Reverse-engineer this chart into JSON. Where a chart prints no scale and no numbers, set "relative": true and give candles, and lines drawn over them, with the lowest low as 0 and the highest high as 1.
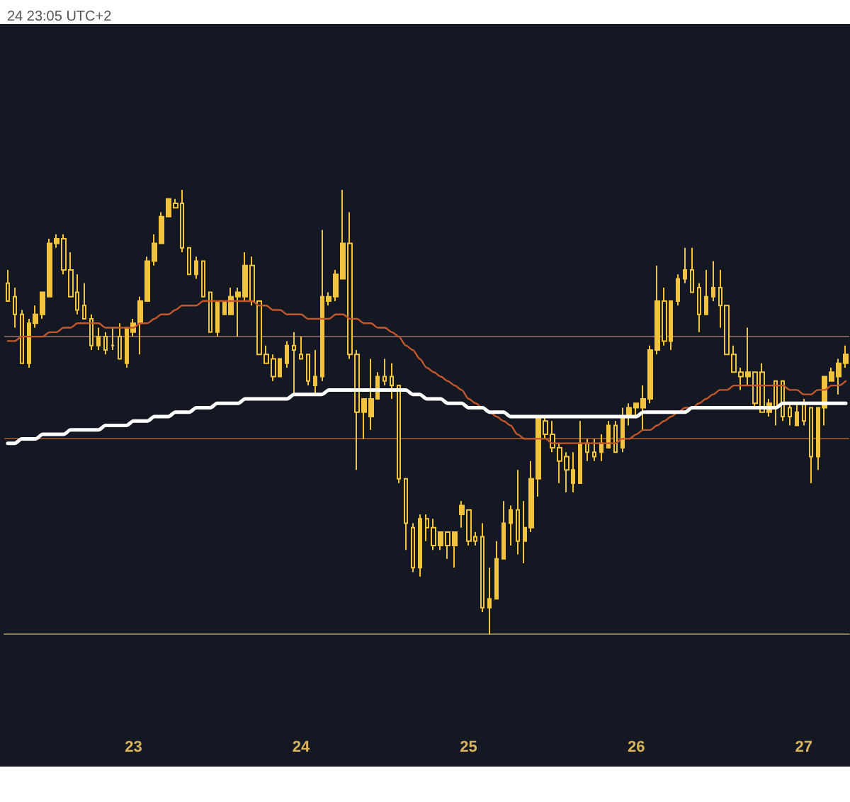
{
  "chart_data": {
    "type": "candlestick",
    "relative": true,
    "annotations": [
      "24 23:05 UTC+2"
    ],
    "color": "#f2c43d",
    "categories": [
      null,
      null,
      null,
      null,
      null,
      null,
      null,
      null,
      null,
      null,
      null,
      null,
      null,
      null,
      null,
      null,
      null,
      null,
      "23",
      null,
      null,
      null,
      null,
      null,
      null,
      null,
      null,
      null,
      null,
      null,
      null,
      null,
      null,
      null,
      null,
      null,
      null,
      null,
      null,
      null,
      null,
      null,
      "24",
      null,
      null,
      null,
      null,
      null,
      null,
      null,
      null,
      null,
      null,
      null,
      null,
      null,
      null,
      null,
      null,
      null,
      null,
      null,
      null,
      null,
      null,
      null,
      "25",
      null,
      null,
      null,
      null,
      null,
      null,
      null,
      null,
      null,
      null,
      null,
      null,
      null,
      null,
      null,
      null,
      null,
      null,
      null,
      null,
      null,
      null,
      null,
      "26",
      null,
      null,
      null,
      null,
      null,
      null,
      null,
      null,
      null,
      null,
      null,
      null,
      null,
      null,
      null,
      null,
      null,
      null,
      null,
      null,
      null,
      null,
      null,
      "27",
      null,
      null,
      null,
      null,
      null,
      null
    ],
    "ohlc": [
      [
        0.79,
        0.82,
        0.75,
        0.75
      ],
      [
        0.76,
        0.78,
        0.69,
        0.72
      ],
      [
        0.72,
        0.73,
        0.61,
        0.61
      ],
      [
        0.61,
        0.71,
        0.6,
        0.7
      ],
      [
        0.7,
        0.74,
        0.69,
        0.72
      ],
      [
        0.72,
        0.77,
        0.71,
        0.77
      ],
      [
        0.76,
        0.89,
        0.76,
        0.88
      ],
      [
        0.88,
        0.9,
        0.87,
        0.89
      ],
      [
        0.89,
        0.9,
        0.81,
        0.82
      ],
      [
        0.82,
        0.86,
        0.76,
        0.76
      ],
      [
        0.77,
        0.81,
        0.72,
        0.73
      ],
      [
        0.74,
        0.79,
        0.71,
        0.71
      ],
      [
        0.71,
        0.72,
        0.64,
        0.65
      ],
      [
        0.65,
        0.69,
        0.64,
        0.67
      ],
      [
        0.67,
        0.68,
        0.63,
        0.64
      ],
      [
        0.65,
        0.69,
        0.64,
        0.65
      ],
      [
        0.67,
        0.7,
        0.62,
        0.62
      ],
      [
        0.61,
        0.69,
        0.6,
        0.69
      ],
      [
        0.68,
        0.71,
        0.67,
        0.7
      ],
      [
        0.7,
        0.76,
        0.63,
        0.75
      ],
      [
        0.75,
        0.85,
        0.75,
        0.84
      ],
      [
        0.84,
        0.9,
        0.83,
        0.88
      ],
      [
        0.88,
        0.95,
        0.88,
        0.94
      ],
      [
        0.94,
        0.98,
        0.94,
        0.98
      ],
      [
        0.97,
        0.98,
        0.96,
        0.96
      ],
      [
        0.97,
        1.0,
        0.86,
        0.87
      ],
      [
        0.87,
        0.87,
        0.81,
        0.81
      ],
      [
        0.81,
        0.85,
        0.8,
        0.84
      ],
      [
        0.84,
        0.84,
        0.76,
        0.76
      ],
      [
        0.77,
        0.77,
        0.68,
        0.68
      ],
      [
        0.68,
        0.75,
        0.67,
        0.75
      ],
      [
        0.72,
        0.75,
        0.72,
        0.75
      ],
      [
        0.72,
        0.78,
        0.72,
        0.76
      ],
      [
        0.76,
        0.78,
        0.67,
        0.77
      ],
      [
        0.76,
        0.86,
        0.75,
        0.83
      ],
      [
        0.83,
        0.85,
        0.74,
        0.75
      ],
      [
        0.75,
        0.75,
        0.63,
        0.63
      ],
      [
        0.63,
        0.65,
        0.61,
        0.61
      ],
      [
        0.62,
        0.63,
        0.57,
        0.58
      ],
      [
        0.58,
        0.62,
        0.58,
        0.62
      ],
      [
        0.61,
        0.66,
        0.6,
        0.65
      ],
      [
        0.65,
        0.68,
        0.54,
        0.64
      ],
      [
        0.63,
        0.67,
        0.62,
        0.62
      ],
      [
        0.63,
        0.63,
        0.56,
        0.57
      ],
      [
        0.56,
        0.64,
        0.54,
        0.58
      ],
      [
        0.58,
        0.91,
        0.57,
        0.76
      ],
      [
        0.75,
        0.77,
        0.74,
        0.76
      ],
      [
        0.76,
        0.82,
        0.75,
        0.81
      ],
      [
        0.8,
        1.0,
        0.8,
        0.88
      ],
      [
        0.88,
        0.95,
        0.62,
        0.63
      ],
      [
        0.63,
        0.64,
        0.37,
        0.5
      ],
      [
        0.5,
        0.53,
        0.44,
        0.53
      ],
      [
        0.49,
        0.62,
        0.46,
        0.53
      ],
      [
        0.53,
        0.59,
        0.53,
        0.58
      ],
      [
        0.58,
        0.62,
        0.56,
        0.57
      ],
      [
        0.58,
        0.61,
        0.53,
        0.56
      ],
      [
        0.56,
        0.56,
        0.34,
        0.35
      ],
      [
        0.35,
        0.35,
        0.19,
        0.25
      ],
      [
        0.24,
        0.25,
        0.14,
        0.15
      ],
      [
        0.15,
        0.27,
        0.13,
        0.26
      ],
      [
        0.26,
        0.27,
        0.21,
        0.24
      ],
      [
        0.24,
        0.26,
        0.19,
        0.2
      ],
      [
        0.2,
        0.23,
        0.19,
        0.23
      ],
      [
        0.23,
        0.23,
        0.17,
        0.2
      ],
      [
        0.2,
        0.23,
        0.15,
        0.23
      ],
      [
        0.27,
        0.3,
        0.24,
        0.29
      ],
      [
        0.28,
        0.28,
        0.2,
        0.21
      ],
      [
        0.22,
        0.23,
        0.2,
        0.21
      ],
      [
        0.22,
        0.25,
        0.05,
        0.06
      ],
      [
        0.06,
        0.15,
        0.0,
        0.08
      ],
      [
        0.08,
        0.21,
        0.08,
        0.17
      ],
      [
        0.17,
        0.3,
        0.17,
        0.25
      ],
      [
        0.25,
        0.29,
        0.2,
        0.28
      ],
      [
        0.28,
        0.37,
        0.18,
        0.21
      ],
      [
        0.21,
        0.3,
        0.16,
        0.24
      ],
      [
        0.24,
        0.39,
        0.23,
        0.35
      ],
      [
        0.35,
        0.49,
        0.31,
        0.49
      ],
      [
        0.48,
        0.49,
        0.44,
        0.45
      ],
      [
        0.45,
        0.48,
        0.41,
        0.42
      ],
      [
        0.42,
        0.43,
        0.34,
        0.39
      ],
      [
        0.4,
        0.41,
        0.32,
        0.37
      ],
      [
        0.34,
        0.41,
        0.32,
        0.37
      ],
      [
        0.34,
        0.48,
        0.34,
        0.43
      ],
      [
        0.43,
        0.44,
        0.39,
        0.41
      ],
      [
        0.41,
        0.44,
        0.39,
        0.4
      ],
      [
        0.41,
        0.45,
        0.39,
        0.43
      ],
      [
        0.42,
        0.48,
        0.42,
        0.47
      ],
      [
        0.47,
        0.48,
        0.41,
        0.41
      ],
      [
        0.42,
        0.51,
        0.41,
        0.49
      ],
      [
        0.49,
        0.52,
        0.47,
        0.51
      ],
      [
        0.51,
        0.52,
        0.49,
        0.52
      ],
      [
        0.51,
        0.56,
        0.46,
        0.53
      ],
      [
        0.53,
        0.65,
        0.52,
        0.64
      ],
      [
        0.64,
        0.83,
        0.63,
        0.75
      ],
      [
        0.75,
        0.78,
        0.65,
        0.66
      ],
      [
        0.66,
        0.75,
        0.64,
        0.75
      ],
      [
        0.75,
        0.81,
        0.74,
        0.8
      ],
      [
        0.8,
        0.87,
        0.79,
        0.82
      ],
      [
        0.82,
        0.87,
        0.77,
        0.77
      ],
      [
        0.78,
        0.79,
        0.68,
        0.72
      ],
      [
        0.72,
        0.82,
        0.72,
        0.76
      ],
      [
        0.76,
        0.84,
        0.75,
        0.78
      ],
      [
        0.78,
        0.82,
        0.69,
        0.74
      ],
      [
        0.74,
        0.74,
        0.63,
        0.63
      ],
      [
        0.63,
        0.65,
        0.59,
        0.59
      ],
      [
        0.59,
        0.6,
        0.55,
        0.58
      ],
      [
        0.58,
        0.69,
        0.56,
        0.59
      ],
      [
        0.59,
        0.59,
        0.51,
        0.52
      ],
      [
        0.59,
        0.61,
        0.5,
        0.5
      ],
      [
        0.5,
        0.53,
        0.49,
        0.52
      ],
      [
        0.57,
        0.57,
        0.47,
        0.51
      ],
      [
        0.57,
        0.57,
        0.48,
        0.49
      ],
      [
        0.51,
        0.52,
        0.47,
        0.49
      ],
      [
        0.47,
        0.52,
        0.47,
        0.5
      ],
      [
        0.52,
        0.53,
        0.47,
        0.48
      ],
      [
        0.51,
        0.51,
        0.34,
        0.4
      ],
      [
        0.4,
        0.51,
        0.37,
        0.51
      ],
      [
        0.51,
        0.58,
        0.47,
        0.58
      ],
      [
        0.57,
        0.6,
        0.57,
        0.59
      ],
      [
        0.58,
        0.62,
        0.54,
        0.61
      ],
      [
        0.61,
        0.65,
        0.6,
        0.63
      ]
    ],
    "series": [
      {
        "type": "line",
        "color": "#c4572c",
        "values": [
          0.66,
          0.66,
          0.67,
          0.67,
          0.67,
          0.67,
          0.68,
          0.68,
          0.69,
          0.69,
          0.7,
          0.7,
          0.7,
          0.7,
          0.69,
          0.69,
          0.69,
          0.69,
          0.69,
          0.7,
          0.7,
          0.71,
          0.72,
          0.72,
          0.73,
          0.74,
          0.74,
          0.74,
          0.75,
          0.75,
          0.75,
          0.75,
          0.75,
          0.75,
          0.75,
          0.75,
          0.74,
          0.74,
          0.73,
          0.73,
          0.72,
          0.72,
          0.72,
          0.71,
          0.71,
          0.71,
          0.71,
          0.72,
          0.72,
          0.71,
          0.71,
          0.7,
          0.7,
          0.69,
          0.69,
          0.68,
          0.67,
          0.65,
          0.64,
          0.62,
          0.6,
          0.59,
          0.58,
          0.57,
          0.56,
          0.55,
          0.53,
          0.52,
          0.51,
          0.5,
          0.49,
          0.48,
          0.47,
          0.45,
          0.44,
          0.44,
          0.44,
          0.44,
          0.43,
          0.43,
          0.43,
          0.43,
          0.43,
          0.43,
          0.43,
          0.43,
          0.43,
          0.43,
          0.44,
          0.44,
          0.45,
          0.46,
          0.46,
          0.47,
          0.48,
          0.49,
          0.5,
          0.51,
          0.51,
          0.52,
          0.53,
          0.54,
          0.55,
          0.55,
          0.56,
          0.56,
          0.56,
          0.56,
          0.56,
          0.56,
          0.56,
          0.56,
          0.55,
          0.55,
          0.54,
          0.54,
          0.55,
          0.55,
          0.56,
          0.56,
          0.57
        ]
      },
      {
        "type": "line",
        "color": "#ffffff",
        "values": [
          0.43,
          0.43,
          0.44,
          0.44,
          0.44,
          0.45,
          0.45,
          0.45,
          0.45,
          0.46,
          0.46,
          0.46,
          0.46,
          0.46,
          0.47,
          0.47,
          0.47,
          0.47,
          0.48,
          0.48,
          0.48,
          0.49,
          0.49,
          0.49,
          0.5,
          0.5,
          0.5,
          0.51,
          0.51,
          0.51,
          0.52,
          0.52,
          0.52,
          0.52,
          0.53,
          0.53,
          0.53,
          0.53,
          0.53,
          0.53,
          0.53,
          0.54,
          0.54,
          0.54,
          0.54,
          0.54,
          0.55,
          0.55,
          0.55,
          0.55,
          0.55,
          0.55,
          0.55,
          0.55,
          0.55,
          0.55,
          0.55,
          0.55,
          0.54,
          0.54,
          0.53,
          0.53,
          0.53,
          0.52,
          0.52,
          0.52,
          0.51,
          0.51,
          0.51,
          0.5,
          0.5,
          0.5,
          0.49,
          0.49,
          0.49,
          0.49,
          0.49,
          0.49,
          0.49,
          0.49,
          0.49,
          0.49,
          0.49,
          0.49,
          0.49,
          0.49,
          0.49,
          0.49,
          0.49,
          0.49,
          0.49,
          0.5,
          0.5,
          0.5,
          0.5,
          0.5,
          0.5,
          0.5,
          0.51,
          0.51,
          0.51,
          0.51,
          0.51,
          0.51,
          0.51,
          0.51,
          0.51,
          0.51,
          0.51,
          0.51,
          0.51,
          0.52,
          0.52,
          0.52,
          0.52,
          0.52,
          0.52,
          0.52,
          0.52,
          0.52,
          0.52
        ]
      }
    ],
    "ref_lines": [
      {
        "axis": "y",
        "value": 0.67,
        "color": "#7a5c57"
      },
      {
        "axis": "y",
        "value": 0.44,
        "color": "#8a4a26"
      }
    ]
  }
}
